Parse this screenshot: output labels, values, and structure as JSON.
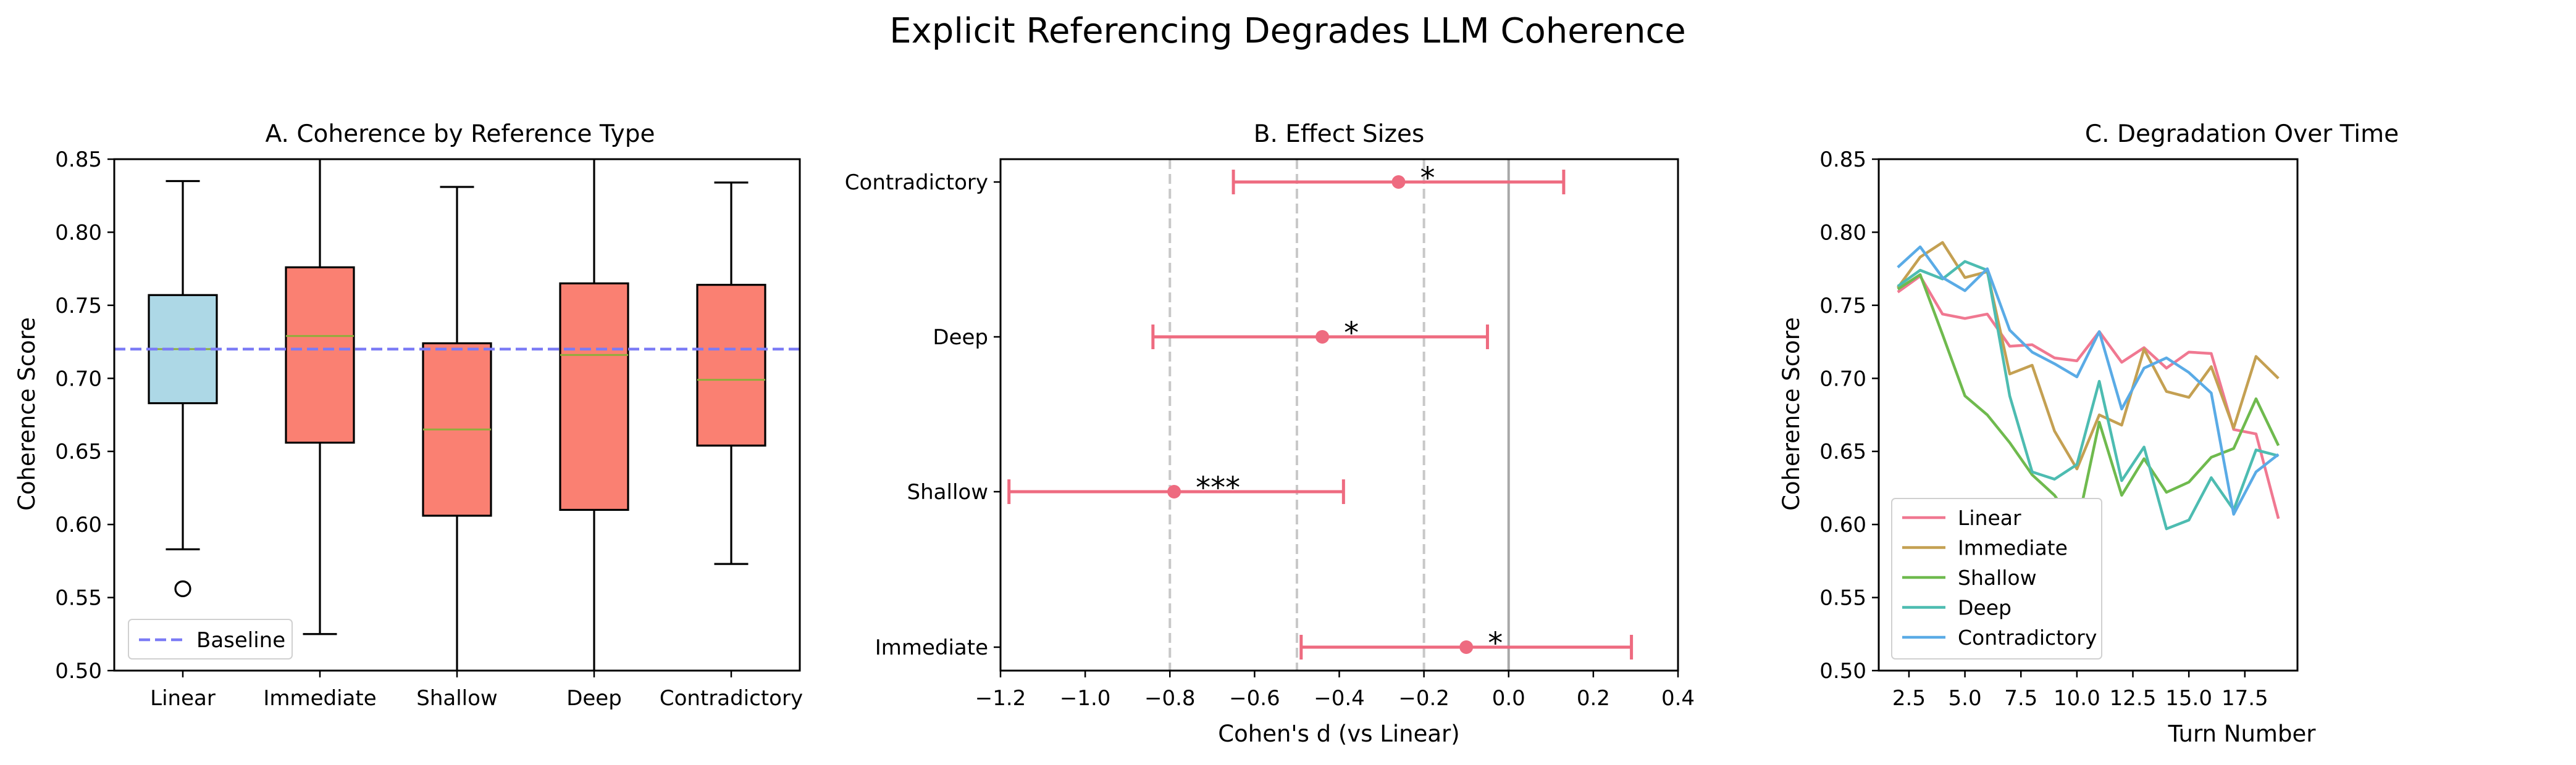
{
  "figure": {
    "title": "Explicit Referencing Degrades LLM Coherence"
  },
  "chart_data": [
    {
      "type": "box",
      "title": "A. Coherence by Reference Type",
      "ylabel": "Coherence Score",
      "ylim": [
        0.5,
        0.85
      ],
      "yticks": [
        "0.50",
        "0.55",
        "0.60",
        "0.65",
        "0.70",
        "0.75",
        "0.80",
        "0.85"
      ],
      "categories": [
        "Linear",
        "Immediate",
        "Shallow",
        "Deep",
        "Contradictory"
      ],
      "boxes": [
        {
          "whisker_low": 0.583,
          "q1": 0.683,
          "median": 0.72,
          "q3": 0.757,
          "whisker_high": 0.835,
          "outliers": [
            0.556
          ],
          "color": "#add8e6"
        },
        {
          "whisker_low": 0.525,
          "q1": 0.656,
          "median": 0.729,
          "q3": 0.776,
          "whisker_high": 0.86,
          "outliers": [],
          "color": "#fa8072"
        },
        {
          "whisker_low": 0.48,
          "q1": 0.606,
          "median": 0.665,
          "q3": 0.724,
          "whisker_high": 0.831,
          "outliers": [],
          "color": "#fa8072"
        },
        {
          "whisker_low": 0.48,
          "q1": 0.61,
          "median": 0.716,
          "q3": 0.765,
          "whisker_high": 0.86,
          "outliers": [],
          "color": "#fa8072"
        },
        {
          "whisker_low": 0.573,
          "q1": 0.654,
          "median": 0.699,
          "q3": 0.764,
          "whisker_high": 0.834,
          "outliers": [],
          "color": "#fa8072"
        }
      ],
      "baseline": {
        "value": 0.72,
        "label": "Baseline",
        "color": "#7b7bf5"
      },
      "legend": "lower-left",
      "grid": false
    },
    {
      "type": "errorbar",
      "title": "B. Effect Sizes",
      "xlabel": "Cohen's d (vs Linear)",
      "xlim": [
        -1.2,
        0.4
      ],
      "xticks": [
        "−1.2",
        "−1.0",
        "−0.8",
        "−0.6",
        "−0.4",
        "−0.2",
        "0.0",
        "0.2",
        "0.4"
      ],
      "categories": [
        "Contradictory",
        "Deep",
        "Shallow",
        "Immediate"
      ],
      "points": [
        {
          "d": -0.26,
          "ci_low": -0.65,
          "ci_high": 0.13,
          "sig": "*"
        },
        {
          "d": -0.44,
          "ci_low": -0.84,
          "ci_high": -0.05,
          "sig": "*"
        },
        {
          "d": -0.79,
          "ci_low": -1.18,
          "ci_high": -0.39,
          "sig": "***"
        },
        {
          "d": -0.1,
          "ci_low": -0.49,
          "ci_high": 0.29,
          "sig": "*"
        }
      ],
      "reference_lines": {
        "dashed": [
          -0.8,
          -0.5,
          -0.2
        ],
        "solid": [
          0.0
        ]
      },
      "color": "#ee6b80"
    },
    {
      "type": "line",
      "title": "C. Degradation Over Time",
      "xlabel": "Turn Number",
      "ylabel": "Coherence Score",
      "ylim": [
        0.5,
        0.85
      ],
      "xlim": [
        1.15,
        19.85
      ],
      "xticks": [
        "2.5",
        "5.0",
        "7.5",
        "10.0",
        "12.5",
        "15.0",
        "17.5"
      ],
      "yticks": [
        "0.50",
        "0.55",
        "0.60",
        "0.65",
        "0.70",
        "0.75",
        "0.80",
        "0.85"
      ],
      "x": [
        2,
        3,
        4,
        5,
        6,
        7,
        8,
        9,
        10,
        11,
        12,
        13,
        14,
        15,
        16,
        17,
        18,
        19
      ],
      "series": [
        {
          "name": "Linear",
          "color": "#f07891",
          "values": [
            0.759,
            0.77,
            0.744,
            0.741,
            0.744,
            0.722,
            0.723,
            0.714,
            0.712,
            0.732,
            0.711,
            0.721,
            0.707,
            0.718,
            0.717,
            0.665,
            0.662,
            0.604
          ]
        },
        {
          "name": "Immediate",
          "color": "#c4a052",
          "values": [
            0.762,
            0.783,
            0.793,
            0.769,
            0.773,
            0.703,
            0.709,
            0.664,
            0.638,
            0.675,
            0.668,
            0.72,
            0.691,
            0.687,
            0.708,
            0.666,
            0.715,
            0.7
          ]
        },
        {
          "name": "Shallow",
          "color": "#6fba4e",
          "values": [
            0.761,
            0.771,
            0.73,
            0.688,
            0.675,
            0.656,
            0.634,
            0.62,
            0.598,
            0.67,
            0.62,
            0.645,
            0.622,
            0.629,
            0.646,
            0.652,
            0.686,
            0.654
          ]
        },
        {
          "name": "Deep",
          "color": "#4dbcb1",
          "values": [
            0.763,
            0.774,
            0.768,
            0.78,
            0.774,
            0.688,
            0.636,
            0.631,
            0.641,
            0.698,
            0.63,
            0.653,
            0.597,
            0.603,
            0.632,
            0.61,
            0.651,
            0.647
          ]
        },
        {
          "name": "Contradictory",
          "color": "#5aabe6",
          "values": [
            0.776,
            0.79,
            0.769,
            0.76,
            0.775,
            0.733,
            0.718,
            0.71,
            0.701,
            0.732,
            0.679,
            0.707,
            0.714,
            0.704,
            0.69,
            0.607,
            0.636,
            0.648
          ]
        }
      ],
      "legend": "lower-left",
      "grid": false
    }
  ]
}
